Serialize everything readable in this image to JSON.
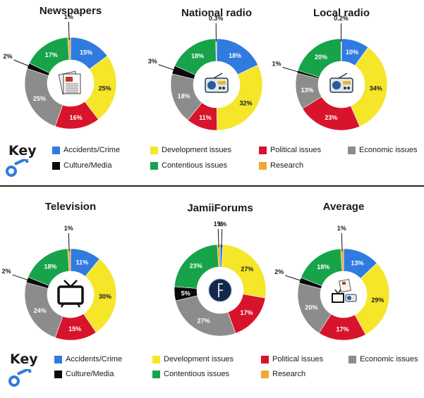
{
  "colors": {
    "accidents": "#2f7be0",
    "development": "#f5e62a",
    "political": "#d7142b",
    "economic": "#8c8c8c",
    "culture": "#0a0a0a",
    "contentious": "#16a34a",
    "research": "#f0a830"
  },
  "legend": {
    "title": "Key",
    "items": [
      {
        "key": "accidents",
        "label": "Accidents/Crime"
      },
      {
        "key": "development",
        "label": "Development issues"
      },
      {
        "key": "political",
        "label": "Political issues"
      },
      {
        "key": "economic",
        "label": "Economic issues"
      },
      {
        "key": "culture",
        "label": "Culture/Media"
      },
      {
        "key": "contentious",
        "label": "Contentious issues"
      },
      {
        "key": "research",
        "label": "Research"
      }
    ]
  },
  "chart_data": [
    {
      "type": "pie",
      "donut": true,
      "title": "Newspapers",
      "icon": "newspaper-icon",
      "slices": [
        {
          "category": "Accidents/Crime",
          "key": "accidents",
          "value": 15,
          "label": "15%"
        },
        {
          "category": "Development issues",
          "key": "development",
          "value": 25,
          "label": "25%"
        },
        {
          "category": "Political issues",
          "key": "political",
          "value": 16,
          "label": "16%"
        },
        {
          "category": "Economic issues",
          "key": "economic",
          "value": 25,
          "label": "25%"
        },
        {
          "category": "Culture/Media",
          "key": "culture",
          "value": 2,
          "label": "2%"
        },
        {
          "category": "Contentious issues",
          "key": "contentious",
          "value": 17,
          "label": "17%"
        },
        {
          "category": "Research",
          "key": "research",
          "value": 1,
          "label": "1%"
        }
      ]
    },
    {
      "type": "pie",
      "donut": true,
      "title": "National radio",
      "icon": "radio-icon",
      "slices": [
        {
          "category": "Accidents/Crime",
          "key": "accidents",
          "value": 18,
          "label": "18%"
        },
        {
          "category": "Development issues",
          "key": "development",
          "value": 32,
          "label": "32%"
        },
        {
          "category": "Political issues",
          "key": "political",
          "value": 11,
          "label": "11%"
        },
        {
          "category": "Economic issues",
          "key": "economic",
          "value": 18,
          "label": "18%"
        },
        {
          "category": "Culture/Media",
          "key": "culture",
          "value": 3,
          "label": "3%"
        },
        {
          "category": "Contentious issues",
          "key": "contentious",
          "value": 18,
          "label": "18%"
        },
        {
          "category": "Research",
          "key": "research",
          "value": 0.3,
          "label": "0.3%"
        }
      ]
    },
    {
      "type": "pie",
      "donut": true,
      "title": "Local radio",
      "icon": "radio-icon",
      "slices": [
        {
          "category": "Accidents/Crime",
          "key": "accidents",
          "value": 10,
          "label": "10%"
        },
        {
          "category": "Development issues",
          "key": "development",
          "value": 34,
          "label": "34%"
        },
        {
          "category": "Political issues",
          "key": "political",
          "value": 23,
          "label": "23%"
        },
        {
          "category": "Economic issues",
          "key": "economic",
          "value": 13,
          "label": "13%"
        },
        {
          "category": "Culture/Media",
          "key": "culture",
          "value": 1,
          "label": "1%"
        },
        {
          "category": "Contentious issues",
          "key": "contentious",
          "value": 20,
          "label": "20%"
        },
        {
          "category": "Research",
          "key": "research",
          "value": 0.2,
          "label": "0.2%"
        }
      ]
    },
    {
      "type": "pie",
      "donut": true,
      "title": "Television",
      "icon": "television-icon",
      "slices": [
        {
          "category": "Accidents/Crime",
          "key": "accidents",
          "value": 11,
          "label": "11%"
        },
        {
          "category": "Development issues",
          "key": "development",
          "value": 30,
          "label": "30%"
        },
        {
          "category": "Political issues",
          "key": "political",
          "value": 15,
          "label": "15%"
        },
        {
          "category": "Economic issues",
          "key": "economic",
          "value": 24,
          "label": "24%"
        },
        {
          "category": "Culture/Media",
          "key": "culture",
          "value": 2,
          "label": "2%"
        },
        {
          "category": "Contentious issues",
          "key": "contentious",
          "value": 18,
          "label": "18%"
        },
        {
          "category": "Research",
          "key": "research",
          "value": 1,
          "label": "1%"
        }
      ]
    },
    {
      "type": "pie",
      "donut": true,
      "title": "JamiiForums",
      "icon": "jamiiforums-logo",
      "slices": [
        {
          "category": "Accidents/Crime",
          "key": "accidents",
          "value": 1,
          "label": "1%"
        },
        {
          "category": "Development issues",
          "key": "development",
          "value": 27,
          "label": "27%"
        },
        {
          "category": "Political issues",
          "key": "political",
          "value": 17,
          "label": "17%"
        },
        {
          "category": "Economic issues",
          "key": "economic",
          "value": 27,
          "label": "27%"
        },
        {
          "category": "Culture/Media",
          "key": "culture",
          "value": 5,
          "label": "5%"
        },
        {
          "category": "Contentious issues",
          "key": "contentious",
          "value": 23,
          "label": "23%"
        },
        {
          "category": "Research",
          "key": "research",
          "value": 1,
          "label": "1%"
        }
      ]
    },
    {
      "type": "pie",
      "donut": true,
      "title": "Average",
      "icon": "media-collage-icon",
      "slices": [
        {
          "category": "Accidents/Crime",
          "key": "accidents",
          "value": 13,
          "label": "13%"
        },
        {
          "category": "Development issues",
          "key": "development",
          "value": 29,
          "label": "29%"
        },
        {
          "category": "Political issues",
          "key": "political",
          "value": 17,
          "label": "17%"
        },
        {
          "category": "Economic issues",
          "key": "economic",
          "value": 20,
          "label": "20%"
        },
        {
          "category": "Culture/Media",
          "key": "culture",
          "value": 2,
          "label": "2%"
        },
        {
          "category": "Contentious issues",
          "key": "contentious",
          "value": 18,
          "label": "18%"
        },
        {
          "category": "Research",
          "key": "research",
          "value": 1,
          "label": "1%"
        }
      ]
    }
  ]
}
